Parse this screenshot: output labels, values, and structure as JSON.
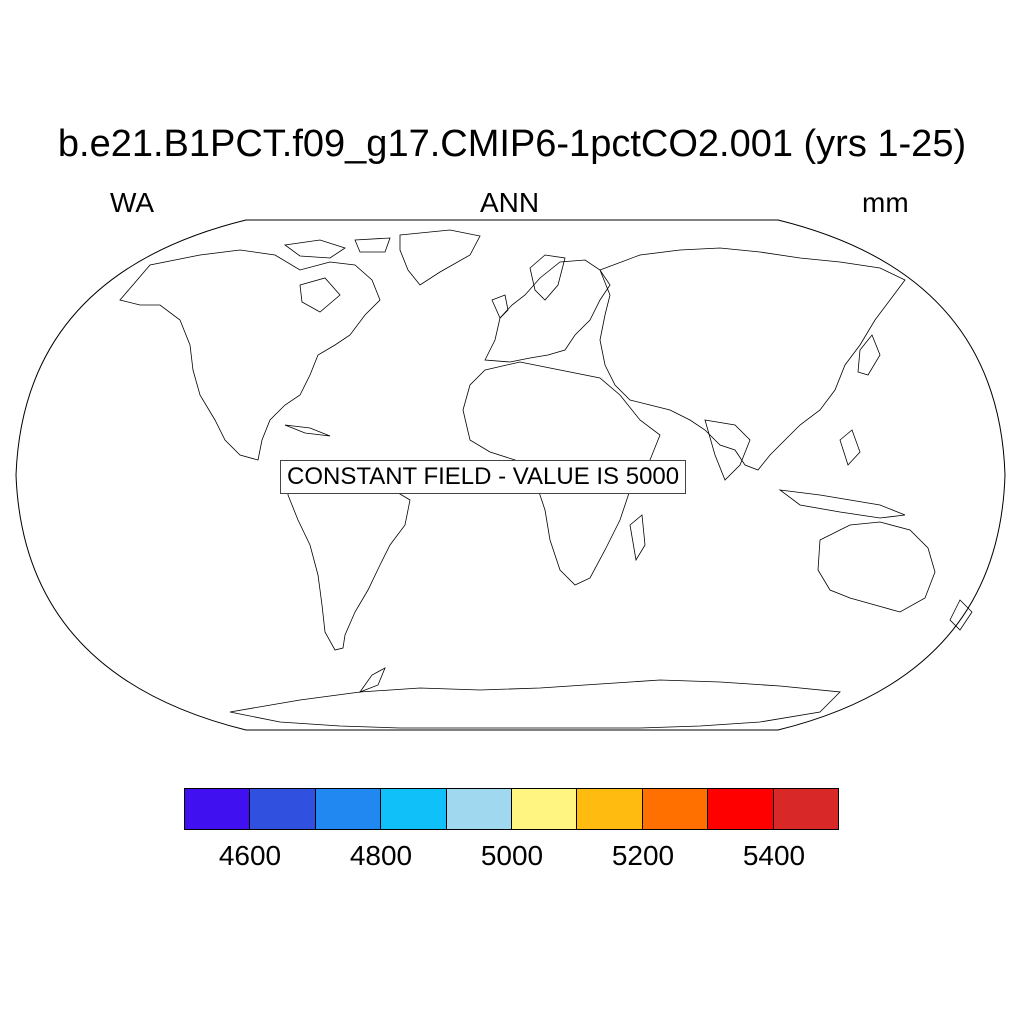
{
  "title": "b.e21.B1PCT.f09_g17.CMIP6-1pctCO2.001 (yrs 1-25)",
  "left_label": "WA",
  "center_label": "ANN",
  "right_label": "mm",
  "constant_field_message": "CONSTANT FIELD - VALUE IS 5000",
  "map": {
    "projection": "Robinson",
    "features": [
      "coastlines"
    ],
    "fill": "none",
    "line_color": "#000000"
  },
  "colorbar": {
    "colors": [
      "#4010f0",
      "#3050e0",
      "#2088f0",
      "#10c0f8",
      "#a0d8f0",
      "#fff580",
      "#ffbb10",
      "#ff7000",
      "#ff0000",
      "#d82828"
    ],
    "ticks": [
      "4600",
      "4800",
      "5000",
      "5200",
      "5400"
    ],
    "levels": [
      4500,
      4600,
      4700,
      4800,
      4900,
      5000,
      5100,
      5200,
      5300,
      5400,
      5500
    ]
  }
}
